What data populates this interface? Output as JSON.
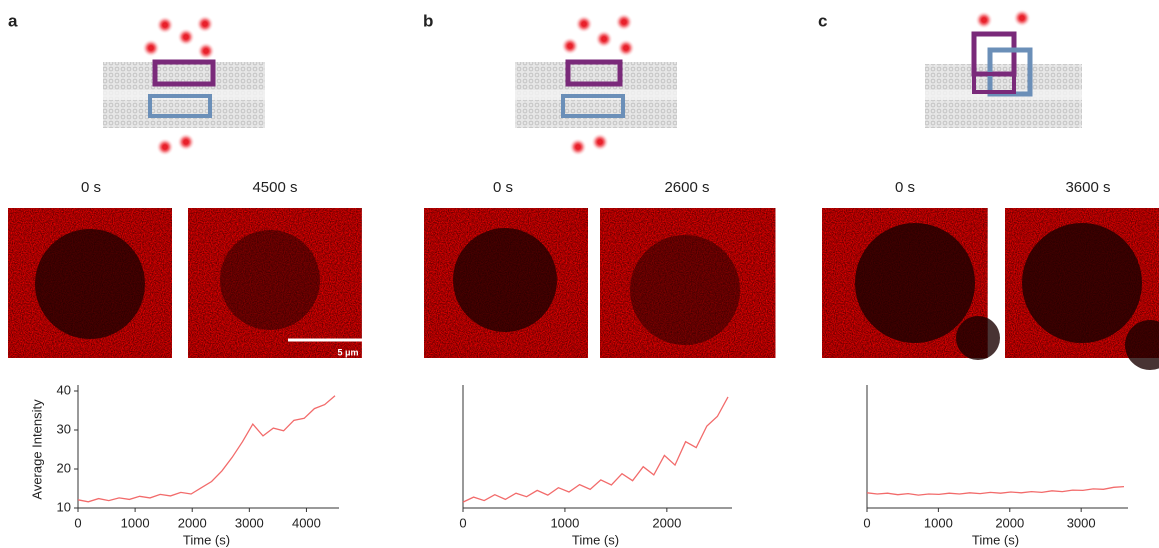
{
  "panels": [
    {
      "label": "a",
      "times": [
        "0 s",
        "4500 s"
      ],
      "scale_bar": "5 μm"
    },
    {
      "label": "b",
      "times": [
        "0 s",
        "2600 s"
      ]
    },
    {
      "label": "c",
      "times": [
        "0 s",
        "3600 s"
      ]
    }
  ],
  "chart_data": [
    {
      "type": "line",
      "xlabel": "Time (s)",
      "ylabel": "Average Intensity",
      "color": "#f26b6b",
      "xlim": [
        0,
        4500
      ],
      "xticks": [
        0,
        1000,
        2000,
        3000,
        4000
      ],
      "ylim": [
        10,
        40
      ],
      "yticks": [
        10,
        20,
        30,
        40
      ],
      "x": [
        0,
        180,
        360,
        540,
        720,
        900,
        1080,
        1260,
        1440,
        1620,
        1800,
        1980,
        2160,
        2340,
        2520,
        2700,
        2880,
        3060,
        3240,
        3420,
        3600,
        3780,
        3960,
        4140,
        4320,
        4500
      ],
      "values": [
        12.1,
        11.6,
        12.4,
        11.9,
        12.6,
        12.2,
        13.0,
        12.6,
        13.5,
        13.1,
        14.0,
        13.6,
        15.2,
        16.8,
        19.5,
        23.0,
        27.0,
        31.5,
        28.5,
        30.5,
        29.8,
        32.5,
        33.0,
        35.5,
        36.5,
        38.8
      ]
    },
    {
      "type": "line",
      "xlabel": "Time (s)",
      "color": "#f26b6b",
      "xlim": [
        0,
        2600
      ],
      "xticks": [
        0,
        1000,
        2000
      ],
      "ylim": [
        10,
        40
      ],
      "x": [
        0,
        104,
        208,
        312,
        416,
        520,
        624,
        728,
        832,
        936,
        1040,
        1144,
        1248,
        1352,
        1456,
        1560,
        1664,
        1768,
        1872,
        1976,
        2080,
        2184,
        2288,
        2392,
        2496,
        2600
      ],
      "values": [
        11.5,
        12.8,
        11.9,
        13.4,
        12.2,
        13.8,
        12.9,
        14.5,
        13.3,
        15.2,
        14.1,
        16.0,
        14.8,
        17.2,
        15.9,
        18.8,
        17.0,
        20.6,
        18.5,
        23.5,
        21.0,
        27.0,
        25.5,
        31.0,
        33.5,
        38.5
      ]
    },
    {
      "type": "line",
      "xlabel": "Time (s)",
      "color": "#f26b6b",
      "xlim": [
        0,
        3600
      ],
      "xticks": [
        0,
        1000,
        2000,
        3000
      ],
      "ylim": [
        10,
        40
      ],
      "x": [
        0,
        144,
        288,
        432,
        576,
        720,
        864,
        1008,
        1152,
        1296,
        1440,
        1584,
        1728,
        1872,
        2016,
        2160,
        2304,
        2448,
        2592,
        2736,
        2880,
        3024,
        3168,
        3312,
        3456,
        3600
      ],
      "values": [
        13.9,
        13.6,
        13.8,
        13.4,
        13.7,
        13.3,
        13.6,
        13.5,
        13.8,
        13.6,
        13.9,
        13.7,
        14.0,
        13.8,
        14.1,
        13.9,
        14.2,
        14.0,
        14.4,
        14.2,
        14.6,
        14.5,
        14.9,
        14.8,
        15.3,
        15.5
      ]
    }
  ]
}
